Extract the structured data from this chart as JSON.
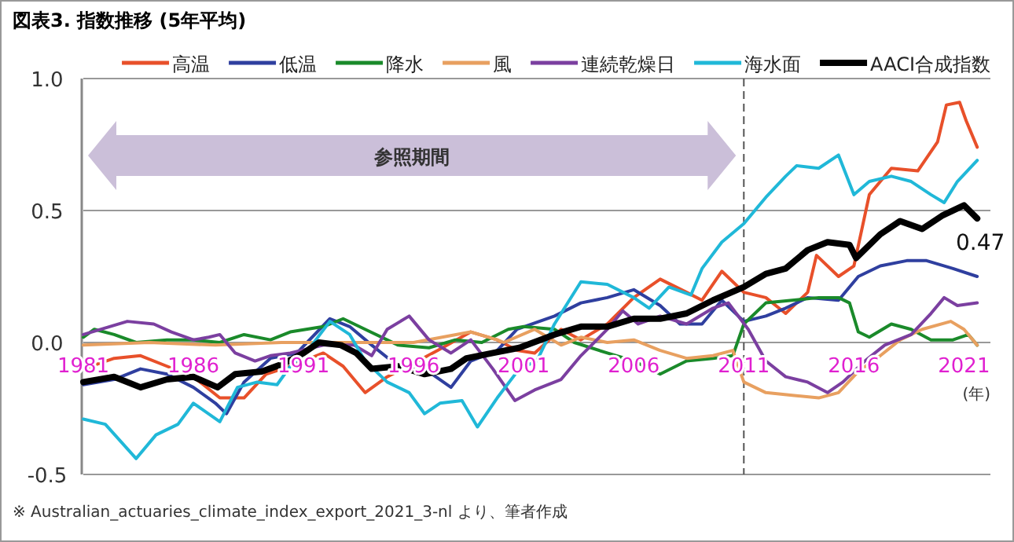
{
  "chart_data": {
    "type": "line",
    "title": "図表3. 指数推移 (5年平均)",
    "annotations": [
      "参照期間",
      "(年)",
      "※ Australian_actuaries_climate_index_export_2021_3-nl より、筆者作成",
      {
        "text": "0.47",
        "x": 2021.6,
        "y": 0.47
      }
    ],
    "xlim": [
      1981,
      2022.2
    ],
    "xticks": [
      1981,
      1986,
      1991,
      1996,
      2001,
      2006,
      2011,
      2016,
      2021
    ],
    "ylim": [
      -0.5,
      1.0
    ],
    "yticks": [
      {
        "value": -0.5,
        "label": "-0.5"
      },
      {
        "value": 0,
        "label": "0.0"
      },
      {
        "value": 0.5,
        "label": "0.5"
      },
      {
        "value": 1.0,
        "label": "1.0"
      }
    ],
    "grid": "y",
    "legend": "top",
    "line_style": "solid",
    "marker": "none",
    "ref_lines": [
      {
        "axis": "x",
        "value": 2011,
        "line_style": "dashed",
        "color": "#555555"
      }
    ],
    "series": [
      {
        "name": "高温",
        "color": "#e8502a",
        "x": [
          1981,
          1982.4,
          1983.6,
          1984.8,
          1986,
          1987.2,
          1988.3,
          1989.3,
          1990.4,
          1991.9,
          1992.8,
          1993.8,
          1994.8,
          1996.2,
          1997.1,
          1998.6,
          1999.8,
          2000.7,
          2001.5,
          2002.7,
          2003.6,
          2004.8,
          2006,
          2007.2,
          2008.4,
          2009.1,
          2010,
          2011,
          2012,
          2012.9,
          2013.9,
          2014.3,
          2015.3,
          2016,
          2016.7,
          2017.7,
          2018.9,
          2019.8,
          2020.2,
          2020.8,
          2021.1,
          2021.6
        ],
        "values": [
          -0.1,
          -0.06,
          -0.05,
          -0.09,
          -0.13,
          -0.21,
          -0.21,
          -0.12,
          -0.09,
          -0.04,
          -0.09,
          -0.19,
          -0.13,
          -0.07,
          -0.03,
          0.04,
          0.01,
          -0.03,
          -0.04,
          0.05,
          0.01,
          0.07,
          0.17,
          0.24,
          0.19,
          0.16,
          0.27,
          0.19,
          0.17,
          0.11,
          0.19,
          0.33,
          0.25,
          0.29,
          0.56,
          0.66,
          0.65,
          0.76,
          0.9,
          0.91,
          0.84,
          0.74
        ]
      },
      {
        "name": "低温",
        "color": "#2f3f9f",
        "x": [
          1981,
          1982.4,
          1983.6,
          1984.8,
          1986,
          1987,
          1987.5,
          1988.3,
          1989.5,
          1990.7,
          1992.2,
          1993.1,
          1994.1,
          1995.3,
          1996.5,
          1997.7,
          1998.6,
          1999.8,
          2000.7,
          2002.4,
          2003.6,
          2004.8,
          2006,
          2007.2,
          2008.1,
          2009.1,
          2010,
          2011,
          2012,
          2012.9,
          2013.9,
          2015.3,
          2016.2,
          2017.2,
          2018.4,
          2019.3,
          2020.5,
          2021.6
        ],
        "values": [
          -0.16,
          -0.14,
          -0.1,
          -0.12,
          -0.17,
          -0.23,
          -0.27,
          -0.15,
          -0.06,
          -0.04,
          0.09,
          0.06,
          -0.01,
          -0.09,
          -0.1,
          -0.17,
          -0.07,
          -0.03,
          0.05,
          0.1,
          0.15,
          0.17,
          0.2,
          0.14,
          0.07,
          0.07,
          0.16,
          0.08,
          0.1,
          0.13,
          0.17,
          0.16,
          0.25,
          0.29,
          0.31,
          0.31,
          0.28,
          0.25
        ]
      },
      {
        "name": "降水",
        "color": "#1a8a2a",
        "x": [
          1981,
          1981.5,
          1982.4,
          1983.4,
          1984.8,
          1986,
          1987.2,
          1988.3,
          1989.5,
          1990.4,
          1991.9,
          1992.8,
          1993.8,
          1995.3,
          1996.7,
          1997.9,
          1999.1,
          2000.3,
          2001,
          2002.4,
          2003.3,
          2004.8,
          2006,
          2007.2,
          2008.4,
          2009.6,
          2010.5,
          2011,
          2012,
          2013.2,
          2014.4,
          2015.3,
          2015.8,
          2016.2,
          2016.7,
          2017.7,
          2018.6,
          2019.5,
          2020.5,
          2021.2,
          2021.6
        ],
        "values": [
          0.02,
          0.05,
          0.03,
          0,
          0.01,
          0.01,
          0,
          0.03,
          0.01,
          0.04,
          0.06,
          0.09,
          0.05,
          -0.01,
          -0.02,
          0.01,
          0,
          0.05,
          0.06,
          0.05,
          0,
          -0.04,
          -0.07,
          -0.12,
          -0.07,
          -0.06,
          -0.05,
          0.07,
          0.15,
          0.16,
          0.17,
          0.17,
          0.15,
          0.04,
          0.02,
          0.07,
          0.05,
          0.01,
          0.01,
          0.03,
          -0.01
        ]
      },
      {
        "name": "風",
        "color": "#e8a060",
        "x": [
          1981,
          1984,
          1987,
          1990,
          1993,
          1996,
          1998.6,
          1999.8,
          2000.1,
          2001.5,
          2002.7,
          2003.6,
          2004.8,
          2006,
          2007.2,
          2008.4,
          2009.6,
          2010.5,
          2011,
          2012,
          2013.2,
          2014.4,
          2015.3,
          2016.2,
          2017.2,
          2018.1,
          2019.1,
          2020.4,
          2021,
          2021.6
        ],
        "values": [
          -0.01,
          0,
          -0.01,
          0,
          0,
          0,
          0.04,
          0.01,
          0,
          0.05,
          -0.01,
          0.02,
          0,
          0.01,
          -0.03,
          -0.06,
          -0.05,
          -0.03,
          -0.15,
          -0.19,
          -0.2,
          -0.21,
          -0.19,
          -0.11,
          -0.05,
          0.01,
          0.05,
          0.08,
          0.05,
          -0.01
        ]
      },
      {
        "name": "連続乾燥日",
        "color": "#7b3fa0",
        "x": [
          1981,
          1983,
          1984.2,
          1985,
          1986,
          1986.7,
          1987.2,
          1987.9,
          1988.8,
          1989.5,
          1990.4,
          1991.9,
          1993.3,
          1994.1,
          1994.8,
          1995.8,
          1996.7,
          1997.7,
          1998.6,
          1999.6,
          2000.6,
          2001.5,
          2002.7,
          2003.6,
          2004.8,
          2005.5,
          2006.2,
          2007.2,
          2008.4,
          2009.6,
          2010.3,
          2011.2,
          2012,
          2012.9,
          2013.9,
          2014.8,
          2015.5,
          2016.5,
          2017.4,
          2018.6,
          2019.5,
          2020.1,
          2020.7,
          2021.6
        ],
        "values": [
          0.03,
          0.08,
          0.07,
          0.04,
          0.01,
          0.02,
          0.03,
          -0.04,
          -0.07,
          -0.05,
          -0.04,
          -0.01,
          -0.01,
          -0.05,
          0.05,
          0.1,
          0.01,
          -0.04,
          0.01,
          -0.1,
          -0.22,
          -0.18,
          -0.14,
          -0.05,
          0.05,
          0.12,
          0.07,
          0.1,
          0.07,
          0.13,
          0.15,
          0.05,
          -0.07,
          -0.13,
          -0.15,
          -0.19,
          -0.15,
          -0.07,
          -0.01,
          0.03,
          0.11,
          0.17,
          0.14,
          0.15
        ]
      },
      {
        "name": "海水面",
        "color": "#20b8d8",
        "x": [
          1981,
          1982,
          1983.4,
          1984.3,
          1985.3,
          1986,
          1987.2,
          1988,
          1988.9,
          1989.8,
          1990.4,
          1991.2,
          1992.2,
          1993.1,
          1993.8,
          1994.8,
          1995.8,
          1996.5,
          1997.2,
          1998.2,
          1998.9,
          1999.8,
          2000.8,
          2001.6,
          2002.4,
          2003.6,
          2004.8,
          2006,
          2006.7,
          2007.6,
          2008.6,
          2009.1,
          2010,
          2011,
          2012,
          2012.9,
          2013.4,
          2014.4,
          2015.3,
          2016,
          2016.7,
          2017.7,
          2018.6,
          2019.5,
          2020.1,
          2020.7,
          2021.6
        ],
        "values": [
          -0.29,
          -0.31,
          -0.44,
          -0.35,
          -0.31,
          -0.23,
          -0.3,
          -0.17,
          -0.15,
          -0.16,
          -0.09,
          -0.03,
          0.08,
          0.03,
          -0.07,
          -0.15,
          -0.19,
          -0.27,
          -0.23,
          -0.22,
          -0.32,
          -0.21,
          -0.1,
          -0.07,
          0.07,
          0.23,
          0.22,
          0.17,
          0.13,
          0.21,
          0.18,
          0.28,
          0.38,
          0.45,
          0.55,
          0.63,
          0.67,
          0.66,
          0.71,
          0.56,
          0.61,
          0.63,
          0.61,
          0.56,
          0.53,
          0.61,
          0.69
        ]
      },
      {
        "name": "AACI合成指数",
        "color": "#000000",
        "x": [
          1981,
          1982.4,
          1983.6,
          1984.8,
          1986,
          1987.1,
          1987.9,
          1989.1,
          1990.1,
          1991,
          1991.7,
          1992.7,
          1993.4,
          1994.1,
          1995.3,
          1996.5,
          1997.7,
          1998.4,
          1999.6,
          2000.8,
          2002.4,
          2003.6,
          2004.8,
          2006,
          2007.2,
          2008.4,
          2009.6,
          2011,
          2012,
          2012.9,
          2013.9,
          2014.8,
          2015.8,
          2016.1,
          2017.2,
          2018.1,
          2019.1,
          2020,
          2021,
          2021.6
        ],
        "values": [
          -0.15,
          -0.13,
          -0.17,
          -0.14,
          -0.13,
          -0.17,
          -0.12,
          -0.11,
          -0.08,
          -0.04,
          0,
          -0.01,
          -0.04,
          -0.1,
          -0.09,
          -0.12,
          -0.1,
          -0.06,
          -0.04,
          -0.02,
          0.03,
          0.06,
          0.06,
          0.09,
          0.09,
          0.11,
          0.16,
          0.21,
          0.26,
          0.28,
          0.35,
          0.38,
          0.37,
          0.32,
          0.41,
          0.46,
          0.43,
          0.48,
          0.52,
          0.47
        ]
      }
    ]
  }
}
